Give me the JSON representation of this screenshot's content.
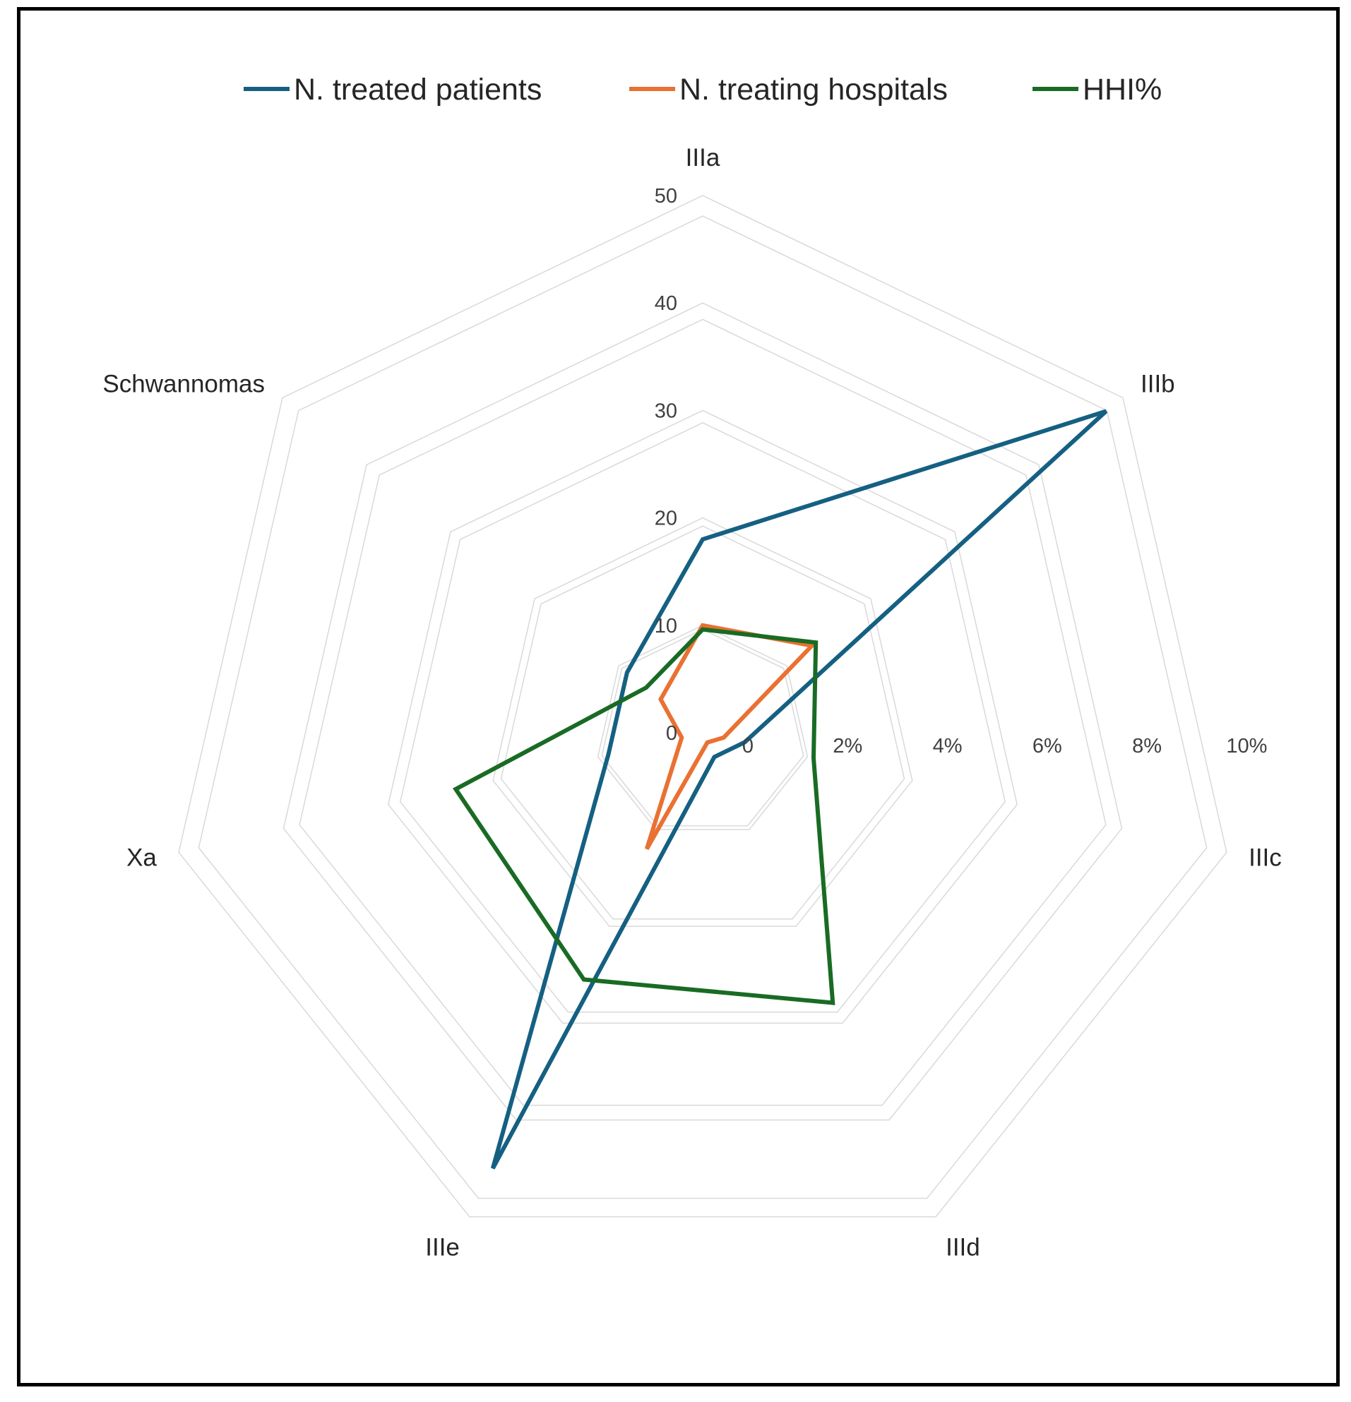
{
  "chart_data": {
    "type": "radar",
    "title": "",
    "categories": [
      "IIIa",
      "IIIb",
      "IIIc",
      "IIId",
      "IIIe",
      "Xa",
      "Schwannomas"
    ],
    "axes": {
      "primary": {
        "range": [
          0,
          50
        ],
        "ticks": [
          0,
          10,
          20,
          30,
          40,
          50
        ],
        "tick_labels": [
          "0",
          "10",
          "20",
          "30",
          "40",
          "50"
        ]
      },
      "secondary": {
        "range": [
          0,
          10
        ],
        "ticks": [
          0,
          2,
          4,
          6,
          8,
          10
        ],
        "tick_labels": [
          "0",
          "2%",
          "4%",
          "6%",
          "8%",
          "10%"
        ],
        "unit": "%"
      }
    },
    "grid": true,
    "legend_position": "top",
    "series": [
      {
        "name": "N. treated patients",
        "axis": "primary",
        "color": "#156082",
        "values": [
          18,
          48,
          4,
          2.5,
          45,
          9,
          9
        ]
      },
      {
        "name": "N. treating hospitals",
        "axis": "primary",
        "color": "#E97132",
        "values": [
          10,
          13,
          2,
          1,
          12,
          2,
          5
        ]
      },
      {
        "name": "HHI%",
        "axis": "secondary",
        "color": "#196B24",
        "values": [
          2,
          2.8,
          2.2,
          5.8,
          5.3,
          4.9,
          1.4
        ]
      }
    ]
  }
}
